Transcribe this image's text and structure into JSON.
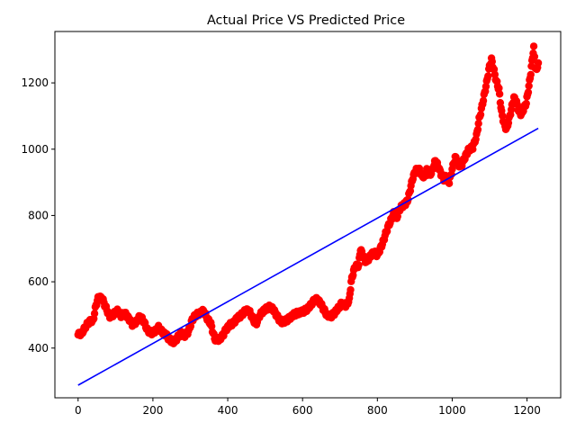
{
  "chart_data": {
    "type": "scatter",
    "title": "Actual Price VS Predicted Price",
    "xlabel": "",
    "ylabel": "",
    "xlim": [
      -62,
      1290
    ],
    "ylim": [
      250,
      1355
    ],
    "x_ticks": [
      0,
      200,
      400,
      600,
      800,
      1000,
      1200
    ],
    "y_ticks": [
      400,
      600,
      800,
      1000,
      1200
    ],
    "grid": false,
    "legend": "none",
    "colors": {
      "scatter": "#ff0000",
      "line": "#0000ff",
      "axes": "#000000",
      "background": "#ffffff"
    },
    "series": [
      {
        "kind": "scatter",
        "points": [
          [
            0,
            440
          ],
          [
            10,
            445
          ],
          [
            20,
            465
          ],
          [
            30,
            480
          ],
          [
            40,
            482
          ],
          [
            48,
            530
          ],
          [
            55,
            555
          ],
          [
            65,
            548
          ],
          [
            75,
            520
          ],
          [
            85,
            495
          ],
          [
            95,
            502
          ],
          [
            105,
            512
          ],
          [
            115,
            498
          ],
          [
            125,
            505
          ],
          [
            135,
            490
          ],
          [
            145,
            472
          ],
          [
            155,
            478
          ],
          [
            165,
            495
          ],
          [
            175,
            482
          ],
          [
            185,
            455
          ],
          [
            195,
            445
          ],
          [
            205,
            450
          ],
          [
            215,
            462
          ],
          [
            225,
            448
          ],
          [
            235,
            440
          ],
          [
            245,
            425
          ],
          [
            255,
            418
          ],
          [
            265,
            430
          ],
          [
            275,
            445
          ],
          [
            285,
            438
          ],
          [
            295,
            450
          ],
          [
            305,
            485
          ],
          [
            315,
            500
          ],
          [
            325,
            505
          ],
          [
            335,
            512
          ],
          [
            345,
            490
          ],
          [
            355,
            472
          ],
          [
            365,
            428
          ],
          [
            375,
            425
          ],
          [
            385,
            435
          ],
          [
            395,
            455
          ],
          [
            405,
            470
          ],
          [
            415,
            475
          ],
          [
            425,
            490
          ],
          [
            435,
            498
          ],
          [
            445,
            510
          ],
          [
            455,
            515
          ],
          [
            465,
            495
          ],
          [
            475,
            470
          ],
          [
            485,
            498
          ],
          [
            495,
            512
          ],
          [
            505,
            520
          ],
          [
            515,
            525
          ],
          [
            525,
            510
          ],
          [
            535,
            490
          ],
          [
            545,
            478
          ],
          [
            555,
            482
          ],
          [
            565,
            490
          ],
          [
            575,
            500
          ],
          [
            585,
            505
          ],
          [
            595,
            508
          ],
          [
            605,
            512
          ],
          [
            615,
            520
          ],
          [
            625,
            535
          ],
          [
            635,
            548
          ],
          [
            645,
            540
          ],
          [
            655,
            520
          ],
          [
            665,
            500
          ],
          [
            675,
            495
          ],
          [
            685,
            505
          ],
          [
            695,
            520
          ],
          [
            705,
            535
          ],
          [
            715,
            528
          ],
          [
            725,
            545
          ],
          [
            730,
            600
          ],
          [
            735,
            625
          ],
          [
            740,
            645
          ],
          [
            750,
            650
          ],
          [
            755,
            700
          ],
          [
            760,
            680
          ],
          [
            770,
            660
          ],
          [
            780,
            675
          ],
          [
            790,
            690
          ],
          [
            800,
            680
          ],
          [
            808,
            700
          ],
          [
            815,
            720
          ],
          [
            822,
            745
          ],
          [
            830,
            770
          ],
          [
            838,
            790
          ],
          [
            845,
            810
          ],
          [
            852,
            795
          ],
          [
            860,
            820
          ],
          [
            868,
            830
          ],
          [
            875,
            835
          ],
          [
            882,
            850
          ],
          [
            888,
            880
          ],
          [
            895,
            915
          ],
          [
            902,
            935
          ],
          [
            910,
            940
          ],
          [
            918,
            925
          ],
          [
            925,
            915
          ],
          [
            932,
            935
          ],
          [
            940,
            920
          ],
          [
            948,
            940
          ],
          [
            955,
            965
          ],
          [
            962,
            950
          ],
          [
            970,
            925
          ],
          [
            978,
            910
          ],
          [
            985,
            920
          ],
          [
            992,
            900
          ],
          [
            1000,
            940
          ],
          [
            1008,
            975
          ],
          [
            1015,
            960
          ],
          [
            1022,
            945
          ],
          [
            1030,
            965
          ],
          [
            1038,
            985
          ],
          [
            1045,
            1000
          ],
          [
            1055,
            1005
          ],
          [
            1065,
            1040
          ],
          [
            1072,
            1090
          ],
          [
            1078,
            1120
          ],
          [
            1085,
            1160
          ],
          [
            1092,
            1200
          ],
          [
            1098,
            1240
          ],
          [
            1105,
            1270
          ],
          [
            1112,
            1235
          ],
          [
            1118,
            1205
          ],
          [
            1125,
            1180
          ],
          [
            1132,
            1110
          ],
          [
            1138,
            1080
          ],
          [
            1145,
            1060
          ],
          [
            1152,
            1090
          ],
          [
            1158,
            1120
          ],
          [
            1165,
            1155
          ],
          [
            1172,
            1140
          ],
          [
            1178,
            1115
          ],
          [
            1185,
            1105
          ],
          [
            1192,
            1125
          ],
          [
            1198,
            1140
          ],
          [
            1205,
            1190
          ],
          [
            1210,
            1230
          ],
          [
            1215,
            1280
          ],
          [
            1218,
            1305
          ],
          [
            1222,
            1250
          ],
          [
            1226,
            1235
          ],
          [
            1230,
            1260
          ]
        ]
      },
      {
        "kind": "line",
        "points": [
          [
            0,
            288
          ],
          [
            1230,
            1063
          ]
        ]
      }
    ]
  }
}
